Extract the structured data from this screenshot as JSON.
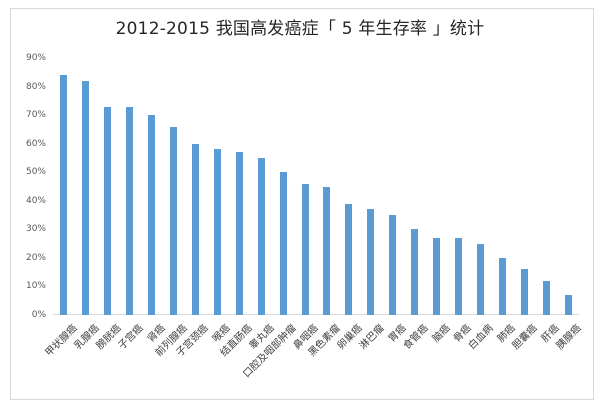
{
  "chart_data": {
    "type": "bar",
    "title": "2012-2015 我国高发癌症「 5 年生存率 」统计",
    "xlabel": "",
    "ylabel": "",
    "ylim": [
      0,
      90
    ],
    "yticks": [
      "0%",
      "10%",
      "20%",
      "30%",
      "40%",
      "50%",
      "60%",
      "70%",
      "80%",
      "90%"
    ],
    "grid": false,
    "legend": null,
    "bar_color": "#5b9bd5",
    "categories": [
      "甲状腺癌",
      "乳腺癌",
      "膀胱癌",
      "子宫癌",
      "肾癌",
      "前列腺癌",
      "子宫颈癌",
      "喉癌",
      "结直肠癌",
      "睾丸癌",
      "口腔及咽部肿瘤",
      "鼻咽癌",
      "黑色素瘤",
      "卵巢癌",
      "淋巴瘤",
      "胃癌",
      "食管癌",
      "脑癌",
      "骨癌",
      "白血病",
      "肺癌",
      "胆囊癌",
      "肝癌",
      "胰腺癌"
    ],
    "values": [
      84,
      82,
      73,
      73,
      70,
      66,
      60,
      58,
      57,
      55,
      50,
      46,
      45,
      39,
      37,
      35,
      30,
      27,
      27,
      25,
      20,
      16,
      12,
      7
    ],
    "unit": "%"
  },
  "colors": {
    "bar": "#5b9bd5",
    "axis_line": "#d9d9d9",
    "tick_text": "#595959",
    "label_text": "#404040",
    "title_text": "#262626",
    "frame_border": "#d9d9d9"
  }
}
